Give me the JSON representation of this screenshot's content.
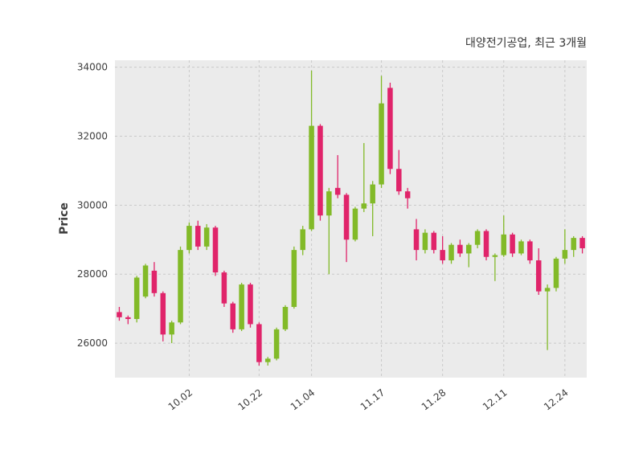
{
  "title": "대양전기공업, 최근 3개월",
  "y_axis_label": "Price",
  "colors": {
    "up": "#82ba28",
    "down": "#e0246a",
    "plot_bg": "#ebebeb",
    "grid": "#c9c9c9",
    "text": "#3d3d3d",
    "title_text": "#333333"
  },
  "chart_data": {
    "type": "candlestick",
    "title": "대양전기공업, 최근 3개월",
    "ylabel": "Price",
    "xlabel": "",
    "grid": true,
    "legend": false,
    "ylim": [
      25000,
      34200
    ],
    "yticks": [
      26000,
      28000,
      30000,
      32000,
      34000
    ],
    "xticks": [
      {
        "i": 8,
        "label": "10.02"
      },
      {
        "i": 16,
        "label": "10.22"
      },
      {
        "i": 22,
        "label": "11.04"
      },
      {
        "i": 30,
        "label": "11.17"
      },
      {
        "i": 37,
        "label": "11.28"
      },
      {
        "i": 44,
        "label": "12.11"
      },
      {
        "i": 51,
        "label": "12.24"
      }
    ],
    "series_format": "candles as [open, high, low, close]",
    "candles": [
      [
        26900,
        27050,
        26650,
        26750
      ],
      [
        26750,
        26800,
        26550,
        26700
      ],
      [
        26700,
        27950,
        26600,
        27900
      ],
      [
        27350,
        28300,
        27300,
        28250
      ],
      [
        28100,
        28350,
        27350,
        27450
      ],
      [
        27450,
        27500,
        26050,
        26250
      ],
      [
        26250,
        26650,
        26000,
        26600
      ],
      [
        26600,
        28800,
        26550,
        28700
      ],
      [
        28700,
        29500,
        28600,
        29400
      ],
      [
        29400,
        29550,
        28700,
        28800
      ],
      [
        28800,
        29450,
        28700,
        29350
      ],
      [
        29350,
        29400,
        27950,
        28050
      ],
      [
        28050,
        28100,
        27050,
        27150
      ],
      [
        27150,
        27200,
        26300,
        26400
      ],
      [
        26400,
        27750,
        26350,
        27700
      ],
      [
        27700,
        27750,
        26450,
        26550
      ],
      [
        26550,
        26600,
        25350,
        25450
      ],
      [
        25450,
        25600,
        25350,
        25550
      ],
      [
        25550,
        26450,
        25500,
        26400
      ],
      [
        26400,
        27100,
        26350,
        27050
      ],
      [
        27050,
        28800,
        27000,
        28700
      ],
      [
        28700,
        29400,
        28550,
        29300
      ],
      [
        29300,
        33900,
        29250,
        32300
      ],
      [
        32300,
        32350,
        29550,
        29700
      ],
      [
        29700,
        30500,
        28000,
        30400
      ],
      [
        30500,
        31450,
        30200,
        30300
      ],
      [
        30300,
        30350,
        28350,
        29000
      ],
      [
        29000,
        29950,
        28950,
        29900
      ],
      [
        29900,
        31800,
        29800,
        30050
      ],
      [
        30050,
        30700,
        29100,
        30600
      ],
      [
        30600,
        33750,
        30500,
        32950
      ],
      [
        33400,
        33550,
        30900,
        31050
      ],
      [
        31050,
        31600,
        30300,
        30400
      ],
      [
        30400,
        30500,
        29900,
        30200
      ],
      [
        29300,
        29600,
        28400,
        28700
      ],
      [
        28700,
        29300,
        28600,
        29200
      ],
      [
        29200,
        29250,
        28600,
        28700
      ],
      [
        28700,
        29100,
        28300,
        28400
      ],
      [
        28400,
        28900,
        28300,
        28850
      ],
      [
        28850,
        29000,
        28500,
        28600
      ],
      [
        28600,
        28900,
        28200,
        28850
      ],
      [
        28850,
        29300,
        28750,
        29250
      ],
      [
        29250,
        29300,
        28400,
        28500
      ],
      [
        28500,
        28600,
        27800,
        28550
      ],
      [
        28550,
        29700,
        28500,
        29150
      ],
      [
        29150,
        29200,
        28500,
        28600
      ],
      [
        28600,
        29000,
        28550,
        28950
      ],
      [
        28950,
        29000,
        28300,
        28400
      ],
      [
        28400,
        28750,
        27400,
        27500
      ],
      [
        27500,
        27700,
        25800,
        27600
      ],
      [
        27600,
        28500,
        27500,
        28450
      ],
      [
        28450,
        29300,
        28300,
        28700
      ],
      [
        28700,
        29100,
        28500,
        29050
      ],
      [
        29050,
        29100,
        28600,
        28750
      ]
    ]
  }
}
